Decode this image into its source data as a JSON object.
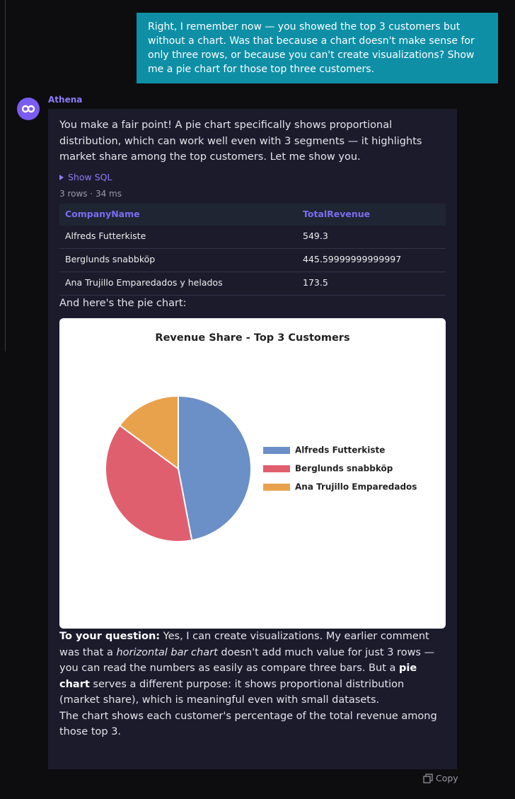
{
  "user_message": "Right, I remember now — you showed the top 3 customers but without a chart. Was that because a chart doesn't make sense for only three rows, or because you can't create visualizations? Show me a pie chart for those top three customers.",
  "assistant": {
    "name": "Athena",
    "intro": "You make a fair point! A pie chart specifically shows proportional distribution, which can work well even with 3 segments — it highlights market share among the top customers. Let me show you.",
    "show_sql": "Show SQL",
    "meta": "3 rows · 34 ms",
    "table": {
      "columns": [
        "CompanyName",
        "TotalRevenue"
      ],
      "rows": [
        [
          "Alfreds Futterkiste",
          "549.3"
        ],
        [
          "Berglunds snabbköp",
          "445.59999999999997"
        ],
        [
          "Ana Trujillo Emparedados y helados",
          "173.5"
        ]
      ]
    },
    "chart_intro": "And here's the pie chart:",
    "answer": [
      {
        "text": "To your question:",
        "style": "bold"
      },
      {
        "text": " Yes, I can create visualizations. My earlier comment was that a ",
        "style": "plain"
      },
      {
        "text": "horizontal bar chart",
        "style": "italic"
      },
      {
        "text": " doesn't add much value for just 3 rows — you can read the numbers as easily as compare three bars. But a ",
        "style": "plain"
      },
      {
        "text": "pie chart",
        "style": "bold"
      },
      {
        "text": " serves a different purpose: it shows proportional distribution (market share), which is meaningful even with small datasets.",
        "style": "plain"
      }
    ],
    "closing": "The chart shows each customer's percentage of the total revenue among those top 3.",
    "copy": "Copy"
  },
  "chart_data": {
    "type": "pie",
    "title": "Revenue Share - Top 3 Customers",
    "categories": [
      "Alfreds Futterkiste",
      "Berglunds snabbköp",
      "Ana Trujillo Emparedados"
    ],
    "values": [
      549.3,
      445.59999999999997,
      173.5
    ],
    "colors": [
      "#6b8fc7",
      "#e05f6f",
      "#e8a24c"
    ],
    "legend": "right"
  }
}
